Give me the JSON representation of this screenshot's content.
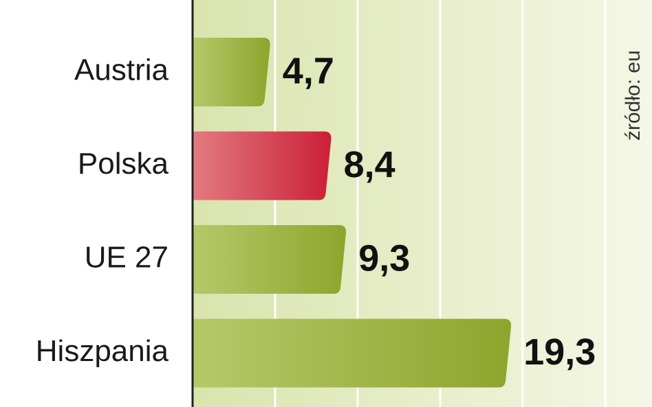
{
  "chart_data": {
    "type": "barh",
    "categories": [
      "Austria",
      "Polska",
      "UE 27",
      "Hiszpania"
    ],
    "values": [
      4.7,
      8.4,
      9.3,
      19.3
    ],
    "value_labels": [
      "4,7",
      "8,4",
      "9,3",
      "19,3"
    ],
    "colors": [
      "#9bb23c",
      "#d32a3e",
      "#9bb23c",
      "#9bb23c"
    ],
    "xlim": [
      0,
      27.5
    ],
    "xticks": [
      5,
      10,
      15,
      20,
      25
    ],
    "grid": true,
    "source": "źródło: eu"
  }
}
